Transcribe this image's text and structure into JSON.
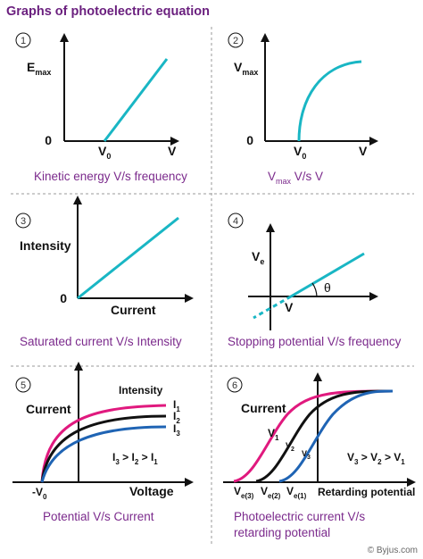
{
  "title": "Graphs of photoelectric equation",
  "colors": {
    "teal": "#19b6c4",
    "magenta": "#e0197e",
    "black": "#111111",
    "blue": "#1f64b4",
    "caption": "#7b2a8c",
    "title": "#6a1f7e"
  },
  "footer": "© Byjus.com",
  "panels": [
    {
      "num": "1",
      "caption": "Kinetic energy V/s frequency",
      "ylabel_main": "E",
      "ylabel_sub": "max",
      "origin": "0",
      "tick_main": "V",
      "tick_sub": "0",
      "xlabel": "V"
    },
    {
      "num": "2",
      "caption_main": "V",
      "caption_sub": "max",
      "caption_rest": " V/s V",
      "ylabel_main": "V",
      "ylabel_sub": "max",
      "origin": "0",
      "tick_main": "V",
      "tick_sub": "0",
      "xlabel": "V"
    },
    {
      "num": "3",
      "caption": "Saturated current V/s Intensity",
      "ylabel": "Intensity",
      "origin": "0",
      "xlabel": "Current"
    },
    {
      "num": "4",
      "caption": "Stopping potential V/s frequency",
      "ylabel_main": "V",
      "ylabel_sub": "e",
      "xlabel": "V",
      "angle": "θ"
    },
    {
      "num": "5",
      "caption": "Potential V/s Current",
      "ylabel": "Current",
      "xlabel": "Voltage",
      "curves_title": "Intensity",
      "neg_main": "-V",
      "neg_sub": "0",
      "curves": [
        {
          "main": "I",
          "sub": "1"
        },
        {
          "main": "I",
          "sub": "2"
        },
        {
          "main": "I",
          "sub": "3"
        }
      ],
      "relation": [
        {
          "main": "I",
          "sub": "3"
        },
        {
          "main": " > I",
          "sub": "2"
        },
        {
          "main": " > I",
          "sub": "1"
        }
      ]
    },
    {
      "num": "6",
      "caption_line1": "Photoelectric current V/s",
      "caption_line2": "retarding potential",
      "ylabel": "Current",
      "xlabel": "Retarding potential",
      "curves": [
        {
          "main": "V",
          "sub": "1"
        },
        {
          "main": "V",
          "sub": "2"
        },
        {
          "main": "V",
          "sub": "3"
        }
      ],
      "stops": [
        {
          "main": "V",
          "sub": "e(3)"
        },
        {
          "main": "V",
          "sub": "e(2)"
        },
        {
          "main": "V",
          "sub": "e(1)"
        }
      ],
      "relation": [
        {
          "main": "V",
          "sub": "3"
        },
        {
          "main": " > V",
          "sub": "2"
        },
        {
          "main": " > V",
          "sub": "1"
        }
      ]
    }
  ]
}
